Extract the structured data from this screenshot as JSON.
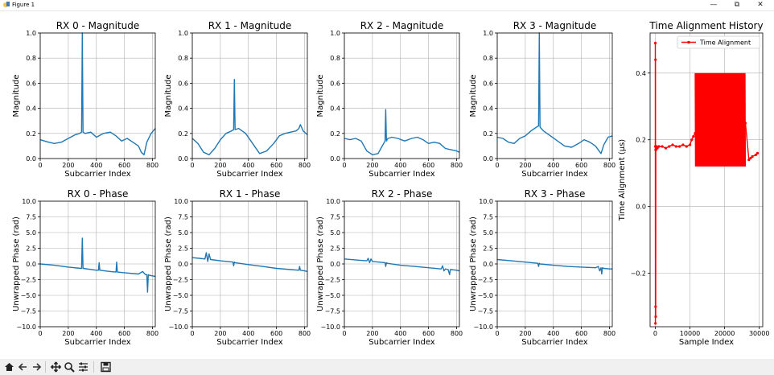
{
  "window": {
    "title": "Figure 1",
    "controls": {
      "minimize": "—",
      "restore": "⧉",
      "close": "✕"
    }
  },
  "toolbar": {
    "tools": [
      "home-icon",
      "back-icon",
      "forward-icon",
      "pan-icon",
      "zoom-icon",
      "configure-subplots-icon",
      "save-icon"
    ]
  },
  "colors": {
    "line": "#1f77b4",
    "alignment": "#ff0000",
    "grid": "#b0b0b0",
    "toolbar": "#f0f0f0"
  },
  "chart_data": [
    {
      "type": "line",
      "title": "RX 0 - Magnitude",
      "xlabel": "Subcarrier Index",
      "ylabel": "Magnitude",
      "xlim": [
        0,
        820
      ],
      "ylim": [
        0,
        1.0
      ],
      "xticks": [
        0,
        200,
        400,
        600,
        800
      ],
      "yticks": [
        0.0,
        0.2,
        0.4,
        0.6,
        0.8,
        1.0
      ],
      "grid": true,
      "series": [
        {
          "x": [
            0,
            30,
            60,
            100,
            150,
            200,
            250,
            280,
            295,
            300,
            305,
            320,
            360,
            400,
            450,
            500,
            540,
            580,
            620,
            660,
            700,
            720,
            740,
            760,
            790,
            820
          ],
          "y": [
            0.15,
            0.14,
            0.13,
            0.12,
            0.13,
            0.16,
            0.19,
            0.2,
            0.21,
            1.0,
            0.21,
            0.2,
            0.21,
            0.17,
            0.2,
            0.21,
            0.18,
            0.14,
            0.16,
            0.13,
            0.1,
            0.05,
            0.03,
            0.13,
            0.2,
            0.24
          ]
        }
      ]
    },
    {
      "type": "line",
      "title": "RX 1 - Magnitude",
      "xlabel": "Subcarrier Index",
      "ylabel": "Magnitude",
      "xlim": [
        0,
        820
      ],
      "ylim": [
        0,
        1.0
      ],
      "xticks": [
        0,
        200,
        400,
        600,
        800
      ],
      "yticks": [
        0.0,
        0.2,
        0.4,
        0.6,
        0.8,
        1.0
      ],
      "grid": true,
      "series": [
        {
          "x": [
            0,
            40,
            80,
            120,
            160,
            200,
            240,
            280,
            295,
            300,
            305,
            330,
            380,
            430,
            480,
            530,
            580,
            620,
            660,
            700,
            740,
            760,
            770,
            790,
            820
          ],
          "y": [
            0.16,
            0.12,
            0.05,
            0.03,
            0.08,
            0.15,
            0.2,
            0.22,
            0.23,
            0.63,
            0.23,
            0.24,
            0.2,
            0.12,
            0.04,
            0.06,
            0.12,
            0.18,
            0.2,
            0.21,
            0.22,
            0.24,
            0.27,
            0.22,
            0.19
          ]
        }
      ]
    },
    {
      "type": "line",
      "title": "RX 2 - Magnitude",
      "xlabel": "Subcarrier Index",
      "ylabel": "Magnitude",
      "xlim": [
        0,
        820
      ],
      "ylim": [
        0,
        1.0
      ],
      "xticks": [
        0,
        200,
        400,
        600,
        800
      ],
      "yticks": [
        0.0,
        0.2,
        0.4,
        0.6,
        0.8,
        1.0
      ],
      "grid": true,
      "series": [
        {
          "x": [
            0,
            40,
            80,
            120,
            160,
            200,
            240,
            270,
            290,
            295,
            300,
            310,
            340,
            380,
            430,
            480,
            520,
            560,
            600,
            640,
            680,
            720,
            760,
            800,
            820
          ],
          "y": [
            0.16,
            0.15,
            0.16,
            0.14,
            0.06,
            0.03,
            0.04,
            0.1,
            0.14,
            0.39,
            0.14,
            0.16,
            0.17,
            0.16,
            0.14,
            0.16,
            0.17,
            0.15,
            0.12,
            0.13,
            0.12,
            0.08,
            0.07,
            0.06,
            0.05
          ]
        }
      ]
    },
    {
      "type": "line",
      "title": "RX 3 - Magnitude",
      "xlabel": "Subcarrier Index",
      "ylabel": "Magnitude",
      "xlim": [
        0,
        820
      ],
      "ylim": [
        0,
        1.0
      ],
      "xticks": [
        0,
        200,
        400,
        600,
        800
      ],
      "yticks": [
        0.0,
        0.2,
        0.4,
        0.6,
        0.8,
        1.0
      ],
      "grid": true,
      "series": [
        {
          "x": [
            0,
            40,
            80,
            120,
            160,
            200,
            240,
            280,
            295,
            300,
            305,
            330,
            380,
            430,
            480,
            530,
            580,
            620,
            660,
            700,
            740,
            760,
            790,
            820
          ],
          "y": [
            0.17,
            0.16,
            0.13,
            0.12,
            0.16,
            0.18,
            0.22,
            0.25,
            0.26,
            1.0,
            0.25,
            0.22,
            0.18,
            0.14,
            0.1,
            0.09,
            0.12,
            0.15,
            0.13,
            0.1,
            0.04,
            0.11,
            0.17,
            0.18
          ]
        }
      ]
    },
    {
      "type": "line",
      "title": "RX 0 - Phase",
      "xlabel": "Subcarrier Index",
      "ylabel": "Unwrapped Phase (rad)",
      "xlim": [
        0,
        820
      ],
      "ylim": [
        -10,
        10
      ],
      "xticks": [
        0,
        200,
        400,
        600,
        800
      ],
      "yticks": [
        -10.0,
        -7.5,
        -5.0,
        -2.5,
        0.0,
        2.5,
        5.0,
        7.5,
        10.0
      ],
      "grid": true,
      "series": [
        {
          "x": [
            0,
            100,
            200,
            290,
            295,
            300,
            305,
            400,
            415,
            420,
            425,
            500,
            540,
            545,
            550,
            600,
            700,
            730,
            750,
            760,
            765,
            770,
            775,
            800,
            820
          ],
          "y": [
            0.0,
            -0.2,
            -0.5,
            -0.7,
            -0.7,
            4.1,
            -0.7,
            -1.0,
            -1.0,
            0.2,
            -1.0,
            -1.2,
            -1.3,
            0.3,
            -1.3,
            -1.4,
            -1.6,
            -1.2,
            -1.7,
            -1.7,
            -4.5,
            -1.7,
            -1.8,
            -1.9,
            -2.0
          ]
        }
      ]
    },
    {
      "type": "line",
      "title": "RX 1 - Phase",
      "xlabel": "Subcarrier Index",
      "ylabel": "Unwrapped Phase (rad)",
      "xlim": [
        0,
        820
      ],
      "ylim": [
        -10,
        10
      ],
      "xticks": [
        0,
        200,
        400,
        600,
        800
      ],
      "yticks": [
        -10.0,
        -7.5,
        -5.0,
        -2.5,
        0.0,
        2.5,
        5.0,
        7.5,
        10.0
      ],
      "grid": true,
      "series": [
        {
          "x": [
            0,
            50,
            90,
            100,
            110,
            120,
            130,
            200,
            290,
            295,
            300,
            305,
            400,
            500,
            600,
            700,
            760,
            765,
            770,
            800,
            820
          ],
          "y": [
            1.0,
            0.9,
            0.8,
            1.8,
            0.4,
            1.6,
            0.7,
            0.5,
            0.3,
            -0.3,
            0.3,
            0.2,
            -0.1,
            -0.4,
            -0.7,
            -0.9,
            -1.0,
            -0.4,
            -1.0,
            -1.1,
            -1.2
          ]
        }
      ]
    },
    {
      "type": "line",
      "title": "RX 2 - Phase",
      "xlabel": "Subcarrier Index",
      "ylabel": "Unwrapped Phase (rad)",
      "xlim": [
        0,
        820
      ],
      "ylim": [
        -10,
        10
      ],
      "xticks": [
        0,
        200,
        400,
        600,
        800
      ],
      "yticks": [
        -10.0,
        -7.5,
        -5.0,
        -2.5,
        0.0,
        2.5,
        5.0,
        7.5,
        10.0
      ],
      "grid": true,
      "series": [
        {
          "x": [
            0,
            100,
            160,
            170,
            180,
            190,
            200,
            290,
            295,
            300,
            305,
            400,
            500,
            600,
            690,
            700,
            710,
            720,
            740,
            750,
            755,
            760,
            800,
            820
          ],
          "y": [
            0.8,
            0.6,
            0.5,
            0.9,
            0.2,
            0.8,
            0.4,
            0.2,
            -0.4,
            0.2,
            0.1,
            -0.2,
            -0.4,
            -0.6,
            -0.8,
            -0.3,
            -1.1,
            -0.8,
            -0.9,
            -1.7,
            -0.9,
            -0.9,
            -1.0,
            -1.1
          ]
        }
      ]
    },
    {
      "type": "line",
      "title": "RX 3 - Phase",
      "xlabel": "Subcarrier Index",
      "ylabel": "Unwrapped Phase (rad)",
      "xlim": [
        0,
        820
      ],
      "ylim": [
        -10,
        10
      ],
      "xticks": [
        0,
        200,
        400,
        600,
        800
      ],
      "yticks": [
        -10.0,
        -7.5,
        -5.0,
        -2.5,
        0.0,
        2.5,
        5.0,
        7.5,
        10.0
      ],
      "grid": true,
      "series": [
        {
          "x": [
            0,
            100,
            200,
            290,
            295,
            300,
            305,
            400,
            500,
            600,
            700,
            720,
            730,
            740,
            745,
            750,
            760,
            800,
            820
          ],
          "y": [
            0.7,
            0.5,
            0.3,
            0.1,
            -0.4,
            0.1,
            0.0,
            -0.2,
            -0.4,
            -0.5,
            -0.6,
            -0.4,
            -1.1,
            -0.6,
            -1.6,
            -0.6,
            -0.7,
            -0.8,
            -0.8
          ]
        }
      ]
    },
    {
      "type": "line",
      "title": "Time Alignment History",
      "xlabel": "Sample Index",
      "ylabel": "Time Alignment (µs)",
      "xlim": [
        -1500,
        31000
      ],
      "ylim": [
        -0.36,
        0.52
      ],
      "xticks": [
        0,
        10000,
        20000,
        30000
      ],
      "yticks": [
        -0.2,
        0.0,
        0.2,
        0.4
      ],
      "grid": true,
      "legend": {
        "position": "top-right",
        "entries": [
          "Time Alignment"
        ]
      },
      "series": [
        {
          "name": "Time Alignment",
          "x": [
            0,
            20,
            40,
            60,
            80,
            100,
            120,
            140,
            160,
            200,
            300,
            600,
            1000,
            2000,
            3000,
            4000,
            5000,
            6000,
            7000,
            8000,
            9000,
            10000,
            10500,
            11000,
            11500,
            12000,
            13000,
            14000,
            15000,
            16000,
            17000,
            18000,
            19000,
            20000,
            21000,
            22000,
            23000,
            24000,
            25000,
            26000,
            27000,
            27500,
            28000,
            29000,
            29500
          ],
          "y": [
            0.18,
            0.49,
            -0.35,
            0.44,
            -0.3,
            0.17,
            -0.33,
            0.17,
            0.18,
            0.17,
            0.18,
            0.175,
            0.18,
            0.18,
            0.175,
            0.18,
            0.185,
            0.18,
            0.18,
            0.185,
            0.18,
            0.185,
            0.2,
            0.21,
            0.22,
            0.23,
            0.235,
            0.235,
            0.24,
            0.245,
            0.24,
            0.25,
            0.245,
            0.25,
            0.255,
            0.255,
            0.255,
            0.26,
            0.255,
            0.25,
            0.14,
            0.145,
            0.15,
            0.155,
            0.16
          ]
        },
        {
          "kind": "oscillation",
          "x_start": 11500,
          "x_end": 26000,
          "ylow": 0.12,
          "yhigh": 0.4
        }
      ]
    }
  ]
}
